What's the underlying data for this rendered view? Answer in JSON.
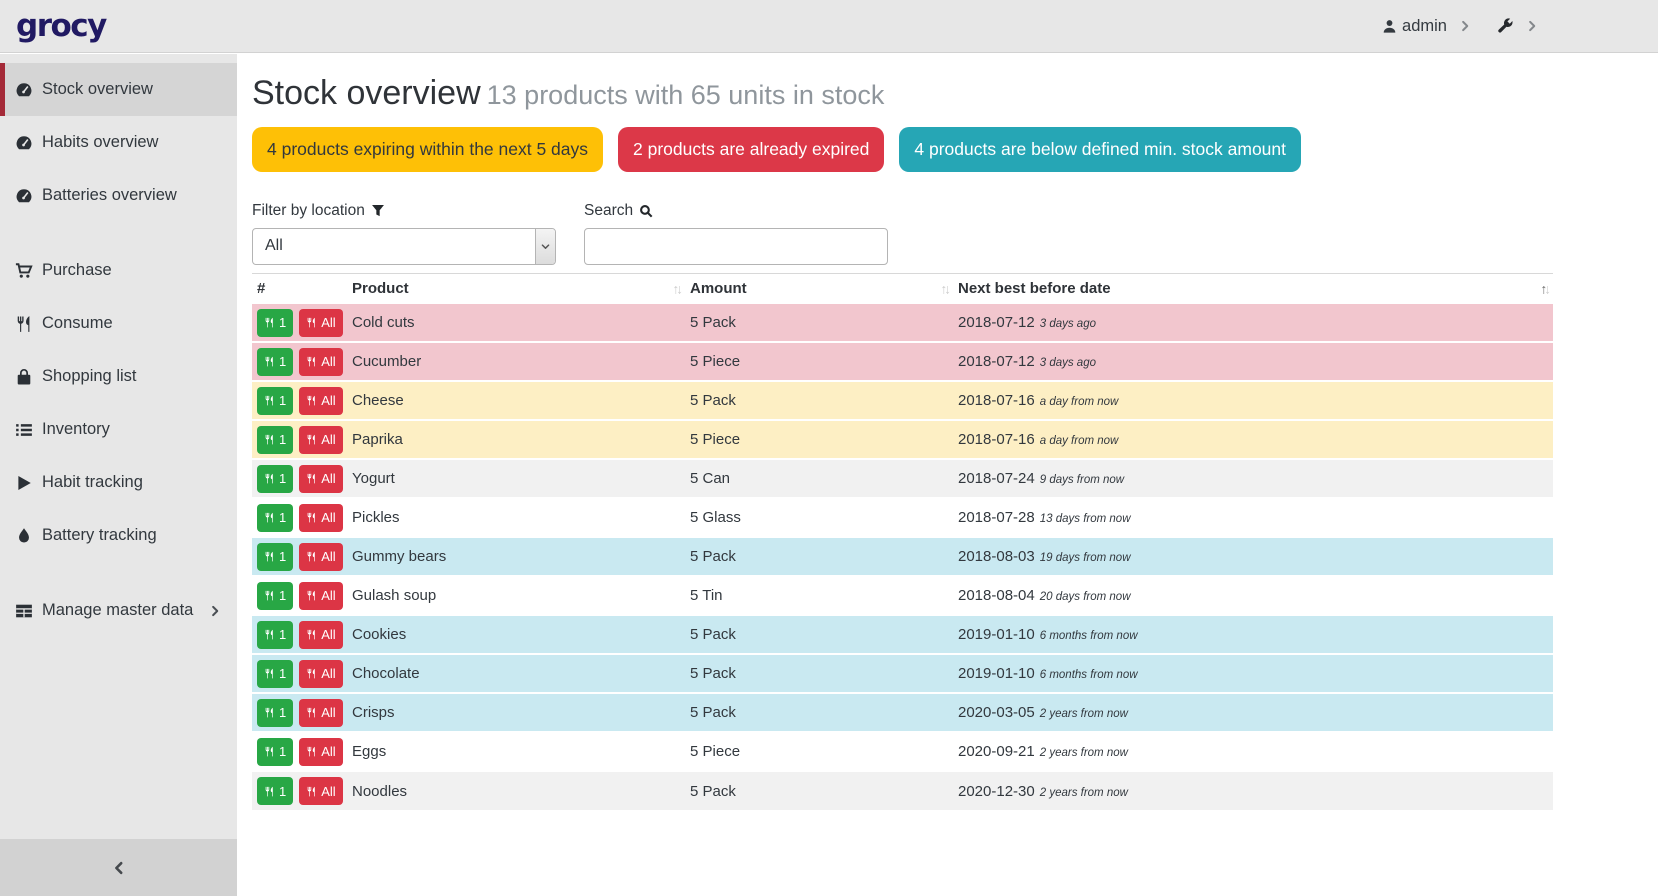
{
  "navbar": {
    "logo": "grocy",
    "user": "admin"
  },
  "sidebar": {
    "items": [
      {
        "label": "Stock overview",
        "icon": "tachometer",
        "active": true
      },
      {
        "label": "Habits overview",
        "icon": "tachometer"
      },
      {
        "label": "Batteries overview",
        "icon": "tachometer"
      },
      {
        "label": "Purchase",
        "icon": "cart",
        "gap": true
      },
      {
        "label": "Consume",
        "icon": "cutlery"
      },
      {
        "label": "Shopping list",
        "icon": "shopping-bag"
      },
      {
        "label": "Inventory",
        "icon": "list"
      },
      {
        "label": "Habit tracking",
        "icon": "play"
      },
      {
        "label": "Battery tracking",
        "icon": "tint"
      },
      {
        "label": "Manage master data",
        "icon": "table",
        "gap": true,
        "chevron": true
      }
    ]
  },
  "header": {
    "title": "Stock overview",
    "subtitle": "13 products with 65 units in stock"
  },
  "badges": [
    {
      "label": "4 products expiring within the next 5 days",
      "color": "#fec006",
      "text_color": "#32383e"
    },
    {
      "label": "2 products are already expired",
      "color": "#dc3848",
      "text_color": "#ffffff"
    },
    {
      "label": "4 products are below defined min. stock amount",
      "color": "#26a6b5",
      "text_color": "#ffffff"
    }
  ],
  "filters": {
    "location_label": "Filter by location",
    "location_value": "All",
    "search_label": "Search",
    "search_value": "",
    "search_placeholder": ""
  },
  "table": {
    "columns": [
      "#",
      "Product",
      "Amount",
      "Next best before date"
    ],
    "sort": {
      "column": "Next best before date",
      "direction": "asc"
    },
    "row_buttons": {
      "consume_one": "1",
      "consume_all": "All"
    },
    "rows": [
      {
        "product": "Cold cuts",
        "amount": "5 Pack",
        "date": "2018-07-12",
        "timeago": "3 days ago",
        "status": "expired"
      },
      {
        "product": "Cucumber",
        "amount": "5 Piece",
        "date": "2018-07-12",
        "timeago": "3 days ago",
        "status": "expired"
      },
      {
        "product": "Cheese",
        "amount": "5 Pack",
        "date": "2018-07-16",
        "timeago": "a day from now",
        "status": "expiring"
      },
      {
        "product": "Paprika",
        "amount": "5 Piece",
        "date": "2018-07-16",
        "timeago": "a day from now",
        "status": "expiring"
      },
      {
        "product": "Yogurt",
        "amount": "5 Can",
        "date": "2018-07-24",
        "timeago": "9 days from now",
        "status": "none"
      },
      {
        "product": "Pickles",
        "amount": "5 Glass",
        "date": "2018-07-28",
        "timeago": "13 days from now",
        "status": "none"
      },
      {
        "product": "Gummy bears",
        "amount": "5 Pack",
        "date": "2018-08-03",
        "timeago": "19 days from now",
        "status": "belowmin"
      },
      {
        "product": "Gulash soup",
        "amount": "5 Tin",
        "date": "2018-08-04",
        "timeago": "20 days from now",
        "status": "none"
      },
      {
        "product": "Cookies",
        "amount": "5 Pack",
        "date": "2019-01-10",
        "timeago": "6 months from now",
        "status": "belowmin"
      },
      {
        "product": "Chocolate",
        "amount": "5 Pack",
        "date": "2019-01-10",
        "timeago": "6 months from now",
        "status": "belowmin"
      },
      {
        "product": "Crisps",
        "amount": "5 Pack",
        "date": "2020-03-05",
        "timeago": "2 years from now",
        "status": "belowmin"
      },
      {
        "product": "Eggs",
        "amount": "5 Piece",
        "date": "2020-09-21",
        "timeago": "2 years from now",
        "status": "none"
      },
      {
        "product": "Noodles",
        "amount": "5 Pack",
        "date": "2020-12-30",
        "timeago": "2 years from now",
        "status": "none"
      }
    ]
  },
  "colors": {
    "accent_active_border": "#a42a38",
    "row_expired": "#f2c6ce",
    "row_expiring": "#fdefc4",
    "row_belowmin": "#c9e9f1",
    "row_stripe": "#f1f1f1",
    "btn_consume_one": "#28a745",
    "btn_consume_all": "#dc3545",
    "logo": "#211a63"
  }
}
